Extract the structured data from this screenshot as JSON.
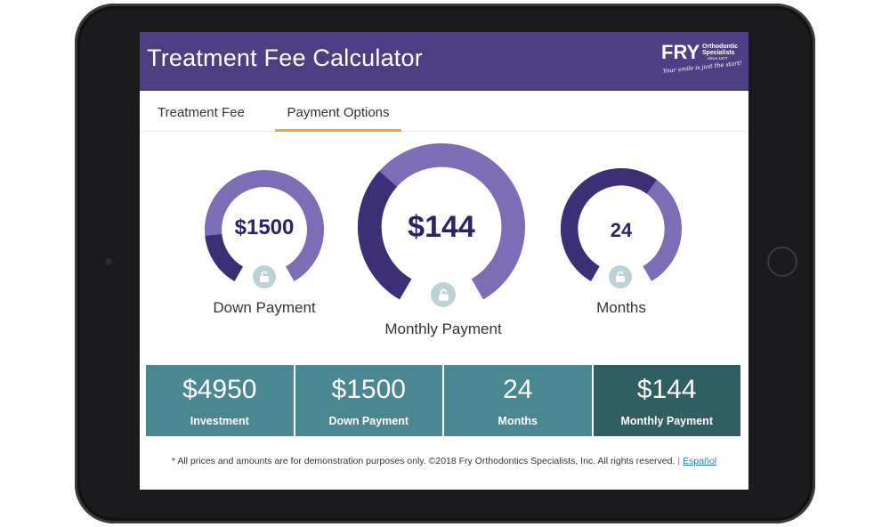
{
  "header": {
    "title": "Treatment Fee Calculator",
    "logo": {
      "brand": "FRY",
      "line1": "Orthodontic",
      "line2": "Specialists",
      "since": "Since 1977",
      "tagline": "Your smile is just the start!"
    },
    "color": "#4e3f84"
  },
  "tabs": [
    {
      "label": "Treatment Fee",
      "active": false
    },
    {
      "label": "Payment Options",
      "active": true
    }
  ],
  "gauges": [
    {
      "value": "$1500",
      "label": "Down Payment",
      "fraction": 0.18
    },
    {
      "value": "$144",
      "label": "Monthly Payment",
      "fraction": 0.34
    },
    {
      "value": "24",
      "label": "Months",
      "fraction": 0.62
    }
  ],
  "summary": [
    {
      "value": "$4950",
      "label": "Investment"
    },
    {
      "value": "$1500",
      "label": "Down Payment"
    },
    {
      "value": "24",
      "label": "Months"
    },
    {
      "value": "$144",
      "label": "Monthly Payment"
    }
  ],
  "footer": {
    "text": "* All prices and amounts are for demonstration purposes only. ©2018 Fry Orthodontics Specialists, Inc. All rights reserved.",
    "separator": "|",
    "link": "Español"
  },
  "colors": {
    "gauge_light": "#7d6db7",
    "gauge_dark": "#3c2f76",
    "card": "#4b8790",
    "card_active": "#315e63",
    "tab_underline": "#f0a04b"
  },
  "icons": {
    "lock": "unlock-icon"
  }
}
